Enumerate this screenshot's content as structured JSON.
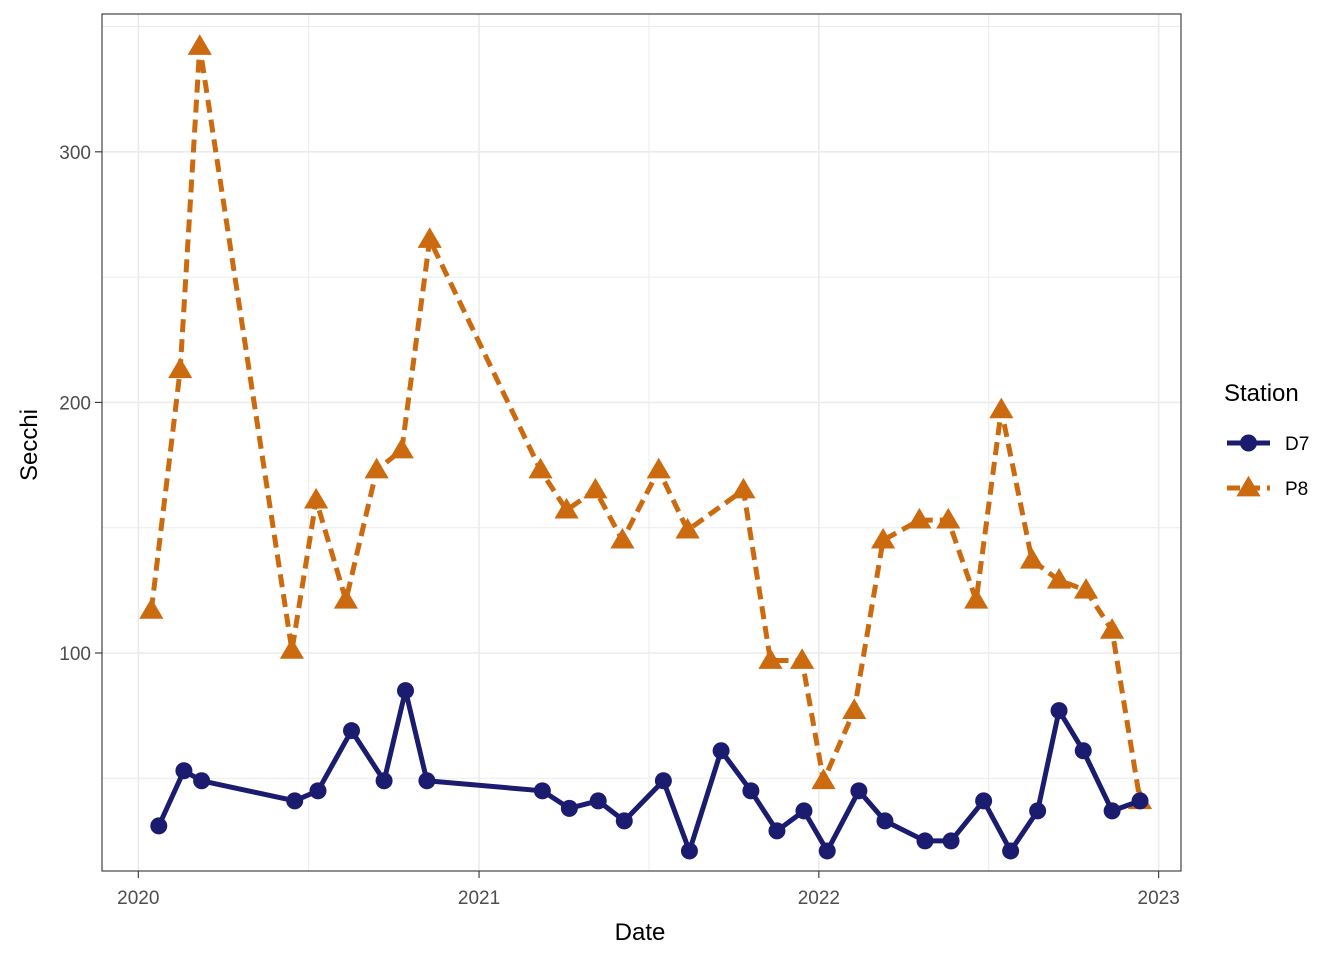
{
  "chart_data": {
    "type": "line",
    "xlabel": "Date",
    "ylabel": "Secchi",
    "xlim": [
      "2019-11-23",
      "2023-01-25"
    ],
    "ylim": [
      13,
      355
    ],
    "x_ticks": [
      {
        "date": "2020-01-01",
        "label": "2020"
      },
      {
        "date": "2021-01-01",
        "label": "2021"
      },
      {
        "date": "2022-01-01",
        "label": "2022"
      },
      {
        "date": "2023-01-01",
        "label": "2023"
      }
    ],
    "y_ticks": [
      {
        "value": 100,
        "label": "100"
      },
      {
        "value": 200,
        "label": "200"
      },
      {
        "value": 300,
        "label": "300"
      }
    ],
    "grid": true,
    "legend": {
      "title": "Station",
      "position": "right"
    },
    "series": [
      {
        "name": "D7",
        "color": "#1b1b6f",
        "marker": "circle",
        "line": "solid",
        "points": [
          {
            "x": "2020-01-23",
            "y": 31
          },
          {
            "x": "2020-02-19",
            "y": 53
          },
          {
            "x": "2020-03-09",
            "y": 49
          },
          {
            "x": "2020-06-17",
            "y": 41
          },
          {
            "x": "2020-07-12",
            "y": 45
          },
          {
            "x": "2020-08-17",
            "y": 69
          },
          {
            "x": "2020-09-21",
            "y": 49
          },
          {
            "x": "2020-10-14",
            "y": 85
          },
          {
            "x": "2020-11-06",
            "y": 49
          },
          {
            "x": "2021-03-10",
            "y": 45
          },
          {
            "x": "2021-04-08",
            "y": 38
          },
          {
            "x": "2021-05-09",
            "y": 41
          },
          {
            "x": "2021-06-06",
            "y": 33
          },
          {
            "x": "2021-07-18",
            "y": 49
          },
          {
            "x": "2021-08-15",
            "y": 21
          },
          {
            "x": "2021-09-18",
            "y": 61
          },
          {
            "x": "2021-10-20",
            "y": 45
          },
          {
            "x": "2021-11-17",
            "y": 29
          },
          {
            "x": "2021-12-16",
            "y": 37
          },
          {
            "x": "2022-01-10",
            "y": 21
          },
          {
            "x": "2022-02-13",
            "y": 45
          },
          {
            "x": "2022-03-13",
            "y": 33
          },
          {
            "x": "2022-04-25",
            "y": 25
          },
          {
            "x": "2022-05-23",
            "y": 25
          },
          {
            "x": "2022-06-27",
            "y": 41
          },
          {
            "x": "2022-07-26",
            "y": 21
          },
          {
            "x": "2022-08-24",
            "y": 37
          },
          {
            "x": "2022-09-16",
            "y": 77
          },
          {
            "x": "2022-10-12",
            "y": 61
          },
          {
            "x": "2022-11-12",
            "y": 37
          },
          {
            "x": "2022-12-12",
            "y": 41
          }
        ]
      },
      {
        "name": "P8",
        "color": "#cc6a0f",
        "marker": "triangle",
        "line": "dashed",
        "points": [
          {
            "x": "2020-01-15",
            "y": 117
          },
          {
            "x": "2020-02-15",
            "y": 213
          },
          {
            "x": "2020-03-07",
            "y": 342
          },
          {
            "x": "2020-06-14",
            "y": 101
          },
          {
            "x": "2020-07-10",
            "y": 161
          },
          {
            "x": "2020-08-11",
            "y": 121
          },
          {
            "x": "2020-09-13",
            "y": 173
          },
          {
            "x": "2020-10-10",
            "y": 181
          },
          {
            "x": "2020-11-09",
            "y": 265
          },
          {
            "x": "2021-03-08",
            "y": 173
          },
          {
            "x": "2021-04-05",
            "y": 157
          },
          {
            "x": "2021-05-06",
            "y": 165
          },
          {
            "x": "2021-06-04",
            "y": 145
          },
          {
            "x": "2021-07-13",
            "y": 173
          },
          {
            "x": "2021-08-13",
            "y": 149
          },
          {
            "x": "2021-10-12",
            "y": 165
          },
          {
            "x": "2021-11-10",
            "y": 97
          },
          {
            "x": "2021-12-14",
            "y": 97
          },
          {
            "x": "2022-01-06",
            "y": 49
          },
          {
            "x": "2022-02-08",
            "y": 77
          },
          {
            "x": "2022-03-11",
            "y": 145
          },
          {
            "x": "2022-04-19",
            "y": 153
          },
          {
            "x": "2022-05-20",
            "y": 153
          },
          {
            "x": "2022-06-19",
            "y": 121
          },
          {
            "x": "2022-07-16",
            "y": 197
          },
          {
            "x": "2022-08-18",
            "y": 137
          },
          {
            "x": "2022-09-16",
            "y": 129
          },
          {
            "x": "2022-10-15",
            "y": 125
          },
          {
            "x": "2022-11-12",
            "y": 109
          },
          {
            "x": "2022-12-12",
            "y": 41
          }
        ]
      }
    ]
  }
}
